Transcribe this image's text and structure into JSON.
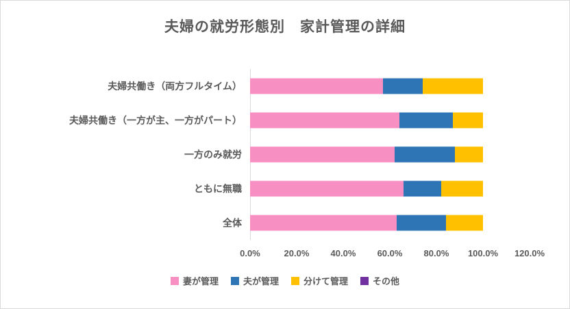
{
  "chart_data": {
    "type": "bar",
    "orientation": "horizontal",
    "stacked": true,
    "title": "夫婦の就労形態別　家計管理の詳細",
    "categories": [
      "夫婦共働き（両方フルタイム）",
      "夫婦共働き（一方が主、一方がパート）",
      "一方のみ就労",
      "ともに無職",
      "全体"
    ],
    "series": [
      {
        "name": "妻が管理",
        "color": "#F88FC2",
        "values": [
          57,
          64,
          62,
          66,
          63
        ]
      },
      {
        "name": "夫が管理",
        "color": "#2E75B6",
        "values": [
          17,
          23,
          26,
          16,
          21
        ]
      },
      {
        "name": "分けて管理",
        "color": "#FFC000",
        "values": [
          26,
          13,
          12,
          18,
          16
        ]
      },
      {
        "name": "その他",
        "color": "#7030A0",
        "values": [
          0,
          0,
          0,
          0,
          0
        ]
      }
    ],
    "x_ticks": [
      "0.0%",
      "20.0%",
      "40.0%",
      "60.0%",
      "80.0%",
      "100.0%",
      "120.0%"
    ],
    "xlim": [
      0,
      120
    ],
    "unit": "percent",
    "grid": false,
    "legend_position": "bottom",
    "axis_line_color": "#d9d9d9",
    "text_color": "#595959"
  }
}
